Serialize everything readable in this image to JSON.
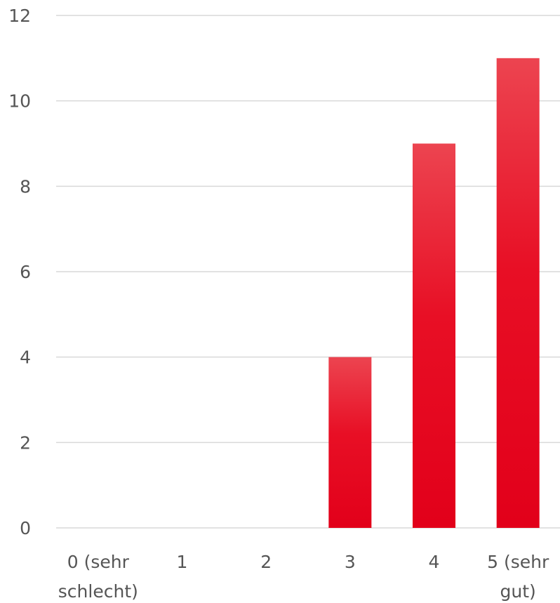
{
  "chart_data": {
    "type": "bar",
    "categories": [
      "0 (sehr schlecht)",
      "1",
      "2",
      "3",
      "4",
      "5 (sehr gut)"
    ],
    "category_lines": [
      [
        "0 (sehr",
        "schlecht)"
      ],
      [
        "1"
      ],
      [
        "2"
      ],
      [
        "3"
      ],
      [
        "4"
      ],
      [
        "5 (sehr",
        "gut)"
      ]
    ],
    "values": [
      0,
      0,
      0,
      4,
      9,
      11
    ],
    "ylim": [
      0,
      12
    ],
    "yticks": [
      0,
      2,
      4,
      6,
      8,
      10,
      12
    ],
    "grid": true,
    "legend": "none",
    "bar_color_top": "#ec4450",
    "bar_color_bottom": "#e2001a",
    "grid_color": "#d9d9d9",
    "tick_color": "#555555"
  }
}
